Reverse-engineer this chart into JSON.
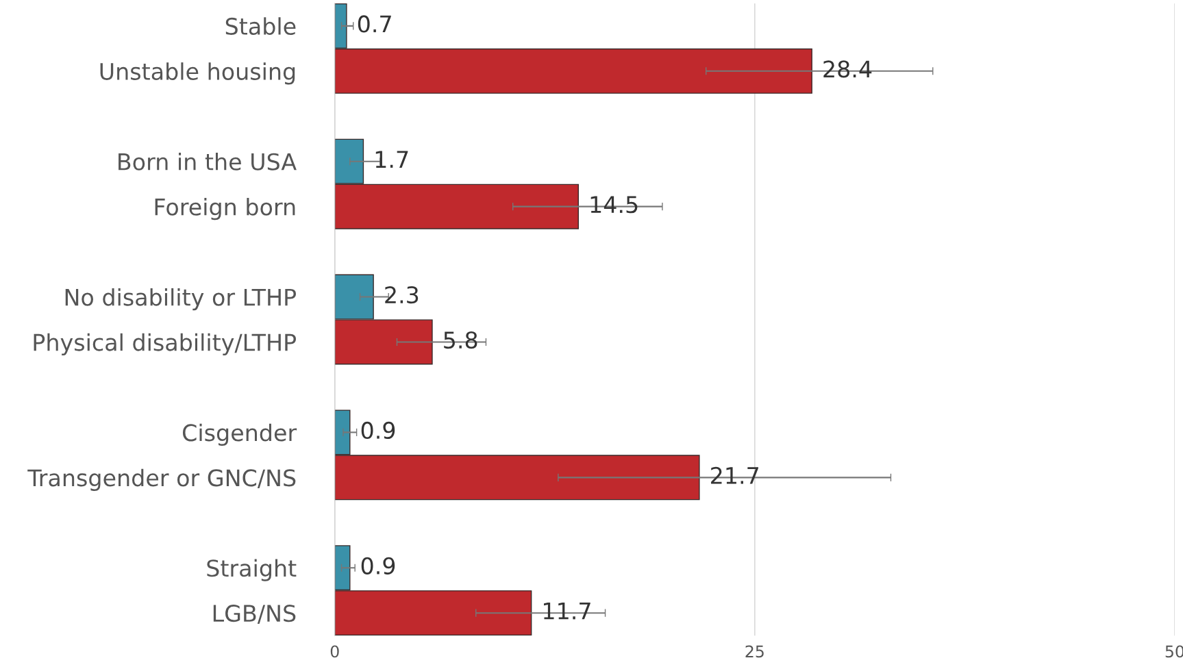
{
  "chart_data": {
    "type": "bar",
    "orientation": "horizontal",
    "categories": [
      "Stable",
      "Unstable housing",
      null,
      "Born in the USA",
      "Foreign born",
      null,
      "No disability or LTHP",
      "Physical disability/LTHP",
      null,
      "Cisgender",
      "Transgender or GNC/NS",
      null,
      "Straight",
      "LGB/NS"
    ],
    "values": [
      0.7,
      28.4,
      null,
      1.7,
      14.5,
      null,
      2.3,
      5.8,
      null,
      0.9,
      21.7,
      null,
      0.9,
      11.7
    ],
    "colors": [
      "#3a91a9",
      "#c0292d",
      null,
      "#3a91a9",
      "#c0292d",
      null,
      "#3a91a9",
      "#c0292d",
      null,
      "#3a91a9",
      "#c0292d",
      null,
      "#3a91a9",
      "#c0292d"
    ],
    "errors": [
      [
        0.4,
        1.1
      ],
      [
        22.1,
        35.6
      ],
      null,
      [
        0.9,
        2.7
      ],
      [
        10.6,
        19.5
      ],
      null,
      [
        1.5,
        3.2
      ],
      [
        3.7,
        9.0
      ],
      null,
      [
        0.5,
        1.3
      ],
      [
        13.3,
        33.1
      ],
      null,
      [
        0.4,
        1.2
      ],
      [
        8.4,
        16.1
      ]
    ],
    "data_labels": true,
    "xlim": [
      0,
      50
    ],
    "xticks": [
      0,
      25,
      50
    ],
    "grid": "x"
  }
}
